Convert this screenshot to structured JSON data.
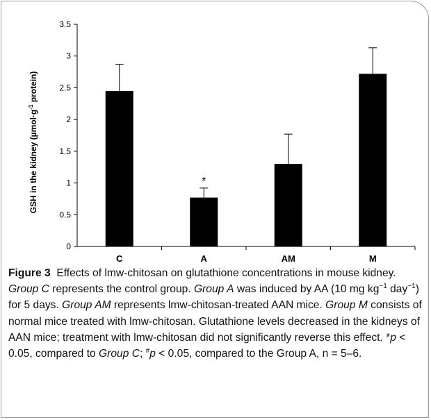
{
  "chart_data": {
    "type": "bar",
    "categories": [
      "C",
      "A",
      "AM",
      "M"
    ],
    "values": [
      2.45,
      0.77,
      1.3,
      2.72
    ],
    "error_upper": [
      2.87,
      0.92,
      1.77,
      3.13
    ],
    "annotations": [
      {
        "category": "A",
        "text": "*"
      }
    ],
    "ylabel_parts": [
      "GSH in the kidney (µmol·g",
      "-1",
      " protein)"
    ],
    "yticks": [
      "0",
      "0.5",
      "1",
      "1.5",
      "2",
      "2.5",
      "3",
      "3.5"
    ],
    "ylim": [
      0,
      3.5
    ],
    "bar_color": "#000000",
    "grid": false
  },
  "caption": {
    "label": "Figure 3",
    "s1": "Effects of lmw-chitosan on glutathione concentrations in mouse kidney. ",
    "groupC": "Group C",
    "s2": " represents the control group. ",
    "groupA": "Group A",
    "s3": " was induced by AA (10 mg kg",
    "sup1": "−1",
    "s4": " day",
    "sup2": "−1",
    "s5": ") for 5 days. ",
    "groupAM": "Group AM",
    "s6": " represents lmw-chitosan-treated AAN mice. ",
    "groupM": "Group M",
    "s7": " consists of normal mice treated with lmw-chitosan. Glutathione levels decreased in the kidneys of AAN mice; treatment with lmw-chitosan did not significantly reverse this effect. *",
    "p1": "p",
    "s8": " < 0.05, compared to ",
    "groupC2": "Group C",
    "s9": "; ",
    "hash": "#",
    "p2": "p",
    "s10": " < 0.05, compared to the Group A, n = 5–6."
  }
}
